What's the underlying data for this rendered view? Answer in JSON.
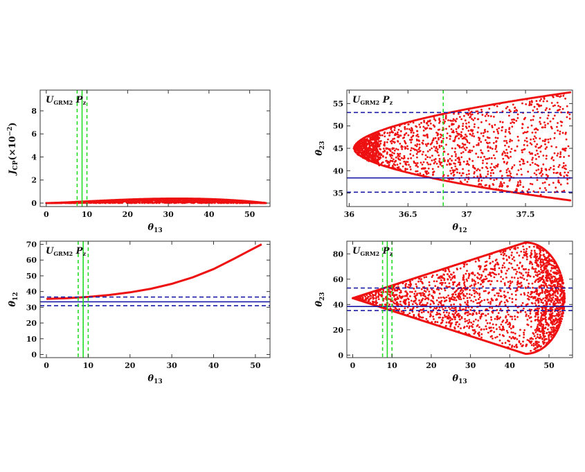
{
  "colors": {
    "points": "#ee1111",
    "exp_blue": "#1a1aa8",
    "exp_green": "#22dd22",
    "frame": "#333333"
  },
  "chart_data": [
    {
      "type": "scatter",
      "tag": {
        "main": "U",
        "sub": "GRM2",
        "p": "P",
        "psub": "z"
      },
      "xlabel": {
        "main": "θ",
        "sub": "13"
      },
      "ylabel": {
        "main": "J",
        "sub": "CP",
        "rest": "(×10",
        "exp": "−2",
        "close": ")"
      },
      "xlim": [
        -1.5,
        55
      ],
      "ylim": [
        -0.3,
        9.8
      ],
      "xticks": [
        0,
        10,
        20,
        30,
        40,
        50
      ],
      "yticks": [
        0,
        2,
        4,
        6,
        8
      ],
      "vlines": [
        {
          "x": 8.8,
          "style": "solid",
          "color": "green"
        },
        {
          "x": 7.6,
          "style": "dashed",
          "color": "green"
        },
        {
          "x": 10.0,
          "style": "dashed",
          "color": "green"
        }
      ],
      "hlines": [],
      "region": {
        "kind": "bell",
        "n": 1500,
        "peak_x": 35,
        "peak_y": 9.6,
        "xmax": 54
      }
    },
    {
      "type": "scatter",
      "tag": {
        "main": "U",
        "sub": "GRM2",
        "p": "P",
        "psub": "z"
      },
      "xlabel": {
        "main": "θ",
        "sub": "12"
      },
      "ylabel": {
        "main": "θ",
        "sub": "23"
      },
      "xlim": [
        35.98,
        37.9
      ],
      "ylim": [
        32,
        58
      ],
      "xticks": [
        36.0,
        36.5,
        37.0,
        37.5
      ],
      "yticks": [
        35,
        40,
        45,
        50,
        55
      ],
      "vlines": [
        {
          "x": 36.8,
          "style": "dashed",
          "color": "green"
        }
      ],
      "hlines": [
        {
          "y": 38.4,
          "style": "solid",
          "color": "blue"
        },
        {
          "y": 35.2,
          "style": "dashed",
          "color": "blue"
        },
        {
          "y": 53.0,
          "style": "dashed",
          "color": "blue"
        }
      ],
      "region": {
        "kind": "funnel",
        "n": 1300,
        "x0": 36.04,
        "x1": 37.88,
        "center": 45,
        "halfwidth_end": 12.5
      }
    },
    {
      "type": "line",
      "tag": {
        "main": "U",
        "sub": "GRM2",
        "p": "P",
        "psub": "z"
      },
      "xlabel": {
        "main": "θ",
        "sub": "13"
      },
      "ylabel": {
        "main": "θ",
        "sub": "12"
      },
      "xlim": [
        -1.5,
        53.5
      ],
      "ylim": [
        -2,
        72
      ],
      "xticks": [
        0,
        10,
        20,
        30,
        40,
        50
      ],
      "yticks": [
        0,
        10,
        20,
        30,
        40,
        50,
        60,
        70
      ],
      "vlines": [
        {
          "x": 8.8,
          "style": "solid",
          "color": "green"
        },
        {
          "x": 7.6,
          "style": "dashed",
          "color": "green"
        },
        {
          "x": 10.0,
          "style": "dashed",
          "color": "green"
        }
      ],
      "hlines": [
        {
          "y": 33.5,
          "style": "solid",
          "color": "blue"
        },
        {
          "y": 31.0,
          "style": "dashed",
          "color": "blue"
        },
        {
          "y": 36.5,
          "style": "dashed",
          "color": "blue"
        }
      ],
      "x": [
        0,
        5,
        10,
        15,
        20,
        25,
        30,
        35,
        40,
        45,
        48,
        51.5
      ],
      "y": [
        35.3,
        35.8,
        36.6,
        37.8,
        39.5,
        41.8,
        44.9,
        49.0,
        54.3,
        61.0,
        65.2,
        70.0
      ]
    },
    {
      "type": "scatter",
      "tag": {
        "main": "U",
        "sub": "GRM2",
        "p": "P",
        "psub": "z"
      },
      "xlabel": {
        "main": "θ",
        "sub": "13"
      },
      "ylabel": {
        "main": "θ",
        "sub": "23"
      },
      "xlim": [
        -1.5,
        56
      ],
      "ylim": [
        -2,
        90
      ],
      "xticks": [
        0,
        10,
        20,
        30,
        40,
        50
      ],
      "yticks": [
        0,
        20,
        40,
        60,
        80
      ],
      "vlines": [
        {
          "x": 8.8,
          "style": "solid",
          "color": "green"
        },
        {
          "x": 7.6,
          "style": "dashed",
          "color": "green"
        },
        {
          "x": 10.0,
          "style": "dashed",
          "color": "green"
        }
      ],
      "hlines": [
        {
          "y": 38.4,
          "style": "solid",
          "color": "blue"
        },
        {
          "y": 35.2,
          "style": "dashed",
          "color": "blue"
        },
        {
          "y": 53.0,
          "style": "dashed",
          "color": "blue"
        }
      ],
      "region": {
        "kind": "cone",
        "n": 1600,
        "center": 45,
        "xmax": 54,
        "peak_x": 44,
        "peak_half": 44
      }
    }
  ]
}
